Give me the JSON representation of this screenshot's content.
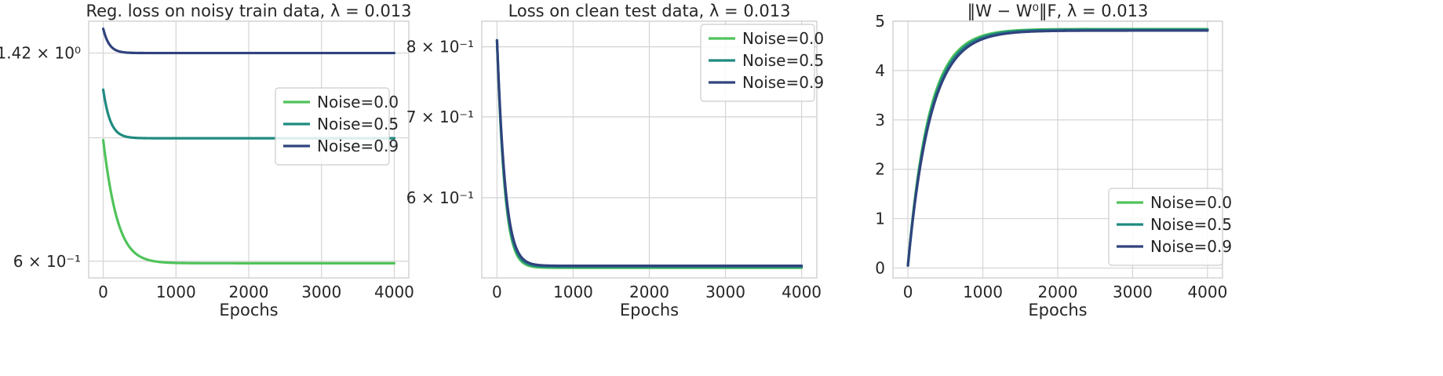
{
  "chart_data": [
    {
      "type": "line",
      "title": "Reg. loss on noisy train data, λ = 0.013",
      "xlabel": "Epochs",
      "ylabel": "",
      "yscale": "log",
      "xlim": [
        -200,
        4200
      ],
      "ylim": [
        0.56,
        1.62
      ],
      "xticks": [
        0,
        1000,
        2000,
        3000,
        4000
      ],
      "xtick_labels": [
        "0",
        "1000",
        "2000",
        "3000",
        "4000"
      ],
      "yticks": [
        1.42,
        1.0,
        0.6
      ],
      "ytick_labels": [
        "1.42 × 10⁰",
        "",
        "6 × 10⁻¹"
      ],
      "grid": true,
      "legend": "center-right",
      "series": [
        {
          "name": "Noise=0.0",
          "color": "#4fc35a",
          "start": 0.99,
          "end": 0.595,
          "tau": 160
        },
        {
          "name": "Noise=0.5",
          "color": "#1f8a80",
          "start": 1.22,
          "end": 0.998,
          "tau": 90
        },
        {
          "name": "Noise=0.9",
          "color": "#30437e",
          "start": 1.57,
          "end": 1.42,
          "tau": 80
        }
      ]
    },
    {
      "type": "line",
      "title": "Loss on clean test data, λ = 0.013",
      "xlabel": "Epochs",
      "ylabel": "",
      "yscale": "log",
      "xlim": [
        -200,
        4200
      ],
      "ylim": [
        0.515,
        0.84
      ],
      "xticks": [
        0,
        1000,
        2000,
        3000,
        4000
      ],
      "xtick_labels": [
        "0",
        "1000",
        "2000",
        "3000",
        "4000"
      ],
      "yticks": [
        0.8,
        0.7,
        0.6
      ],
      "ytick_labels": [
        "8 × 10⁻¹",
        "7 × 10⁻¹",
        "6 × 10⁻¹"
      ],
      "grid": true,
      "legend": "top-right",
      "series": [
        {
          "name": "Noise=0.0",
          "color": "#4fc35a",
          "start": 0.81,
          "end": 0.525,
          "tau": 85
        },
        {
          "name": "Noise=0.5",
          "color": "#1f8a80",
          "start": 0.81,
          "end": 0.526,
          "tau": 88
        },
        {
          "name": "Noise=0.9",
          "color": "#30437e",
          "start": 0.81,
          "end": 0.527,
          "tau": 92
        }
      ]
    },
    {
      "type": "line",
      "title": "‖W − W⁰‖F, λ = 0.013",
      "xlabel": "Epochs",
      "ylabel": "",
      "yscale": "linear",
      "xlim": [
        -200,
        4200
      ],
      "ylim": [
        -0.2,
        5.0
      ],
      "xticks": [
        0,
        1000,
        2000,
        3000,
        4000
      ],
      "xtick_labels": [
        "0",
        "1000",
        "2000",
        "3000",
        "4000"
      ],
      "yticks": [
        0,
        1,
        2,
        3,
        4,
        5
      ],
      "ytick_labels": [
        "0",
        "1",
        "2",
        "3",
        "4",
        "5"
      ],
      "grid": true,
      "legend": "bottom-right",
      "series": [
        {
          "name": "Noise=0.0",
          "color": "#4fc35a",
          "start": 0.05,
          "end": 4.84,
          "tau": 280
        },
        {
          "name": "Noise=0.5",
          "color": "#1f8a80",
          "start": 0.05,
          "end": 4.83,
          "tau": 290
        },
        {
          "name": "Noise=0.9",
          "color": "#30437e",
          "start": 0.05,
          "end": 4.81,
          "tau": 300
        }
      ]
    }
  ]
}
